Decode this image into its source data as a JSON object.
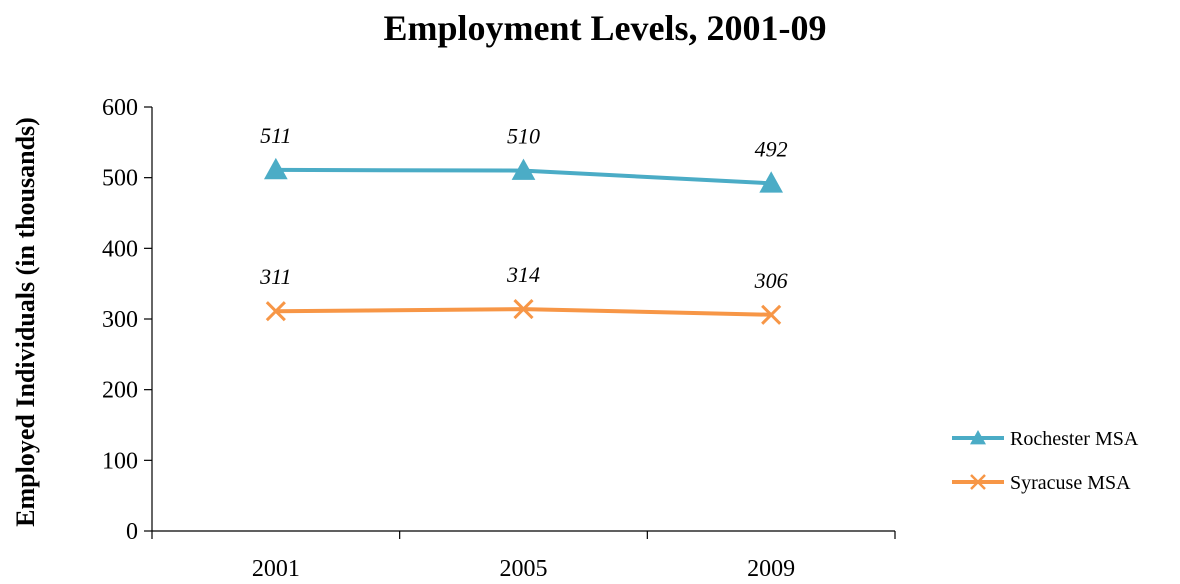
{
  "chart_data": {
    "type": "line",
    "title": "Employment Levels, 2001-09",
    "ylabel": "Employed Individuals (in thousands)",
    "xlabel": "",
    "categories": [
      "2001",
      "2005",
      "2009"
    ],
    "ylim": [
      0,
      600
    ],
    "yticks": [
      0,
      100,
      200,
      300,
      400,
      500,
      600
    ],
    "grid": false,
    "legend_position": "right",
    "series": [
      {
        "name": "Rochester MSA",
        "values": [
          511,
          510,
          492
        ],
        "color": "#4BACC6",
        "marker": "triangle"
      },
      {
        "name": "Syracuse MSA",
        "values": [
          311,
          314,
          306
        ],
        "color": "#F79646",
        "marker": "x"
      }
    ]
  }
}
